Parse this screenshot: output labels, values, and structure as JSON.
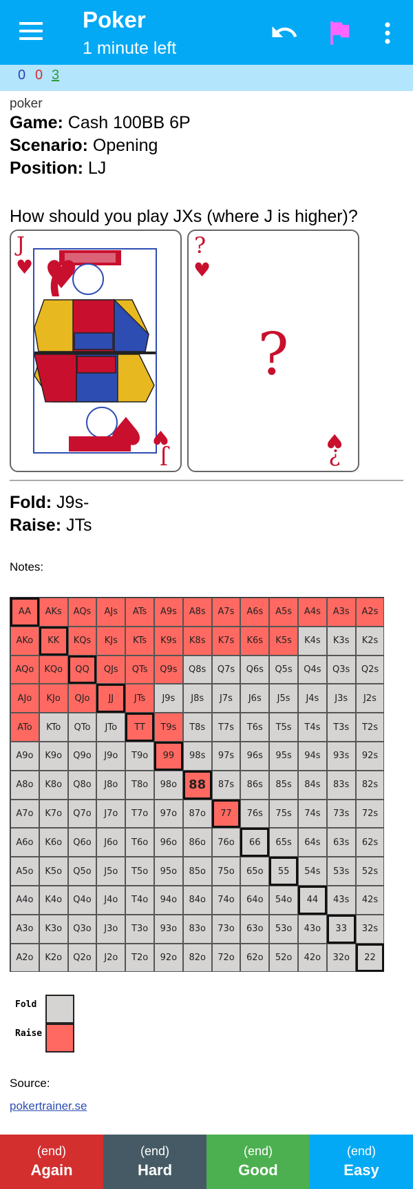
{
  "appbar": {
    "title": "Poker",
    "subtitle": "1 minute left",
    "icons": [
      "menu-icon",
      "undo-icon",
      "flag-icon",
      "more-vert-icon"
    ],
    "color": "#03a9f4",
    "flag_color": "#ff66ff"
  },
  "counts": {
    "new": "0",
    "learn": "0",
    "review": "3"
  },
  "card": {
    "deck": "poker",
    "game_label": "Game:",
    "game_value": "Cash 100BB 6P",
    "scenario_label": "Scenario:",
    "scenario_value": "Opening",
    "position_label": "Position:",
    "position_value": "LJ",
    "question": "How should you play JXs (where J is higher)?",
    "card1": {
      "rank": "J",
      "suit": "♥"
    },
    "card2": {
      "rank": "?",
      "suit": "♥",
      "center": "?",
      "bottom_rank": "¿"
    },
    "fold_label": "Fold:",
    "fold_value": "J9s-",
    "raise_label": "Raise:",
    "raise_value": "JTs",
    "notes": "Notes:"
  },
  "matrix": {
    "ranks": [
      "A",
      "K",
      "Q",
      "J",
      "T",
      "9",
      "8",
      "7",
      "6",
      "5",
      "4",
      "3",
      "2"
    ],
    "raise_hands": [
      "AA",
      "AKs",
      "AQs",
      "AJs",
      "ATs",
      "A9s",
      "A8s",
      "A7s",
      "A6s",
      "A5s",
      "A4s",
      "A3s",
      "A2s",
      "AKo",
      "KK",
      "KQs",
      "KJs",
      "KTs",
      "K9s",
      "K8s",
      "K7s",
      "K6s",
      "K5s",
      "AQo",
      "KQo",
      "QQ",
      "QJs",
      "QTs",
      "Q9s",
      "AJo",
      "KJo",
      "QJo",
      "JJ",
      "JTs",
      "ATo",
      "TT",
      "T9s",
      "99",
      "88",
      "77"
    ],
    "highlight": "88",
    "raise_color": "#ff6961",
    "fold_color": "#d6d3d3"
  },
  "legend": {
    "fold": "Fold",
    "raise": "Raise"
  },
  "source": {
    "label": "Source:",
    "link": "pokertrainer.se"
  },
  "buttons": [
    {
      "time": "(end)",
      "label": "Again",
      "color": "#d32f2f"
    },
    {
      "time": "(end)",
      "label": "Hard",
      "color": "#455a64"
    },
    {
      "time": "(end)",
      "label": "Good",
      "color": "#4caf50"
    },
    {
      "time": "(end)",
      "label": "Easy",
      "color": "#03a9f4"
    }
  ]
}
